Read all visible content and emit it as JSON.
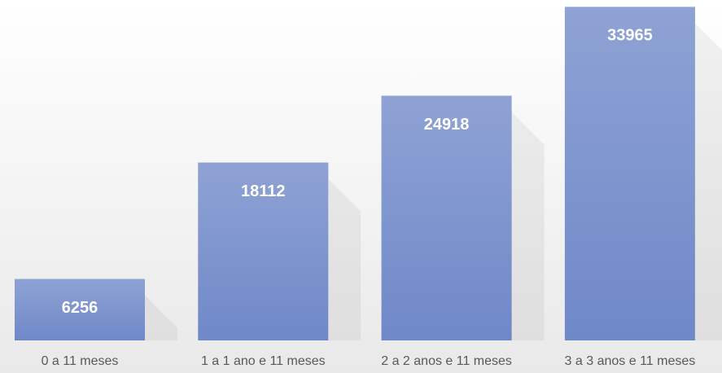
{
  "chart_data": {
    "type": "bar",
    "categories": [
      "0 a 11 meses",
      "1 a 1 ano e 11 meses",
      "2 a 2 anos e 11 meses",
      "3 a 3 anos e 11 meses"
    ],
    "values": [
      6256,
      18112,
      24918,
      33965
    ],
    "color": "#6f88c8",
    "ylim": [
      0,
      34000
    ]
  }
}
